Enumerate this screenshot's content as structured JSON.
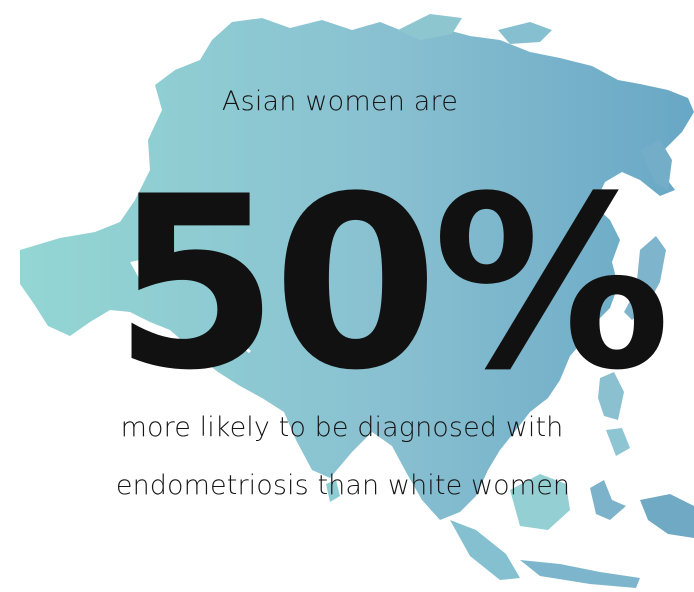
{
  "headline": {
    "intro": "Asian women are",
    "stat": "50%",
    "line1": "more likely to be diagnosed with",
    "line2": "endometriosis than white women"
  },
  "colors": {
    "map_left": "#8fd3d2",
    "map_right": "#6ba8c6",
    "text": "#151515",
    "background": "#ffffff"
  },
  "icons": [
    "asia-map-silhouette"
  ]
}
